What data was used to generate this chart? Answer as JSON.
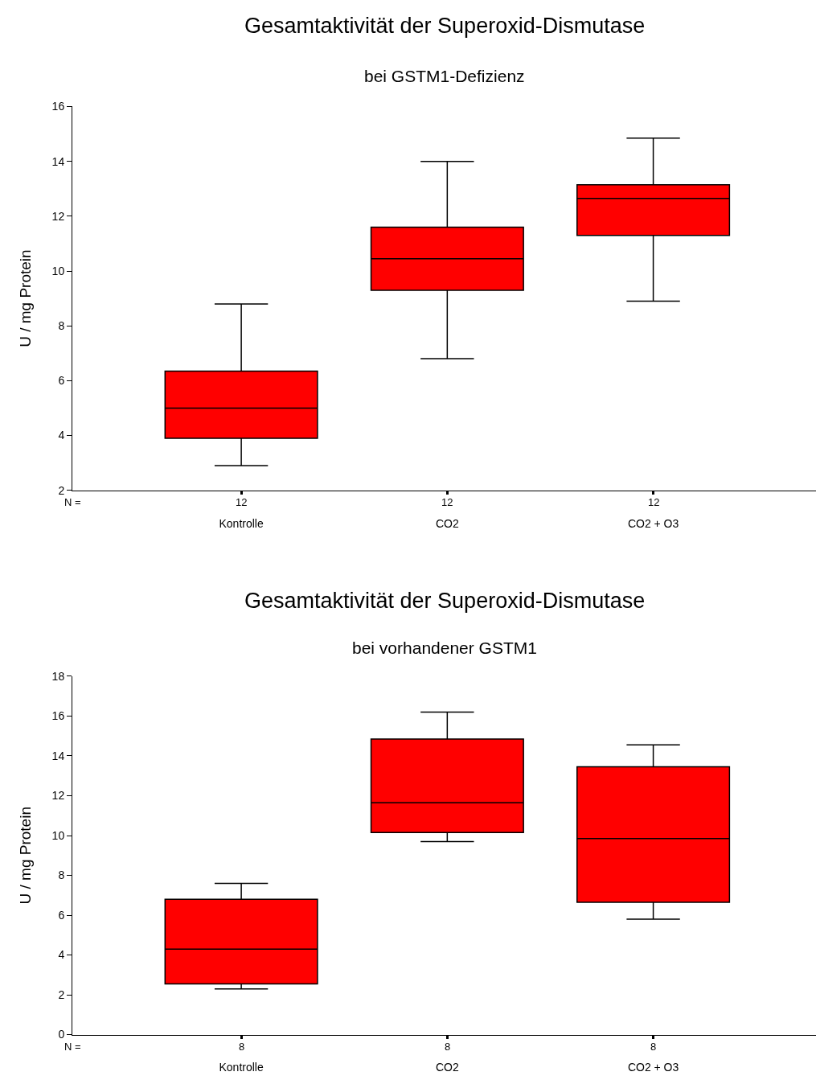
{
  "chart_data": [
    {
      "type": "box",
      "title": "Gesamtaktivität der Superoxid-Dismutase",
      "subtitle": "bei GSTM1-Defizienz",
      "ylabel": "U / mg Protein",
      "categories": [
        "Kontrolle",
        "CO2",
        "CO2 + O3"
      ],
      "ylim": [
        2,
        16
      ],
      "yticks": [
        2,
        4,
        6,
        8,
        10,
        12,
        14,
        16
      ],
      "series": [
        {
          "color": "#ff0000",
          "boxes": [
            {
              "low": 2.9,
              "q1": 3.9,
              "median": 5.0,
              "q3": 6.35,
              "high": 8.8
            },
            {
              "low": 6.8,
              "q1": 9.3,
              "median": 10.45,
              "q3": 11.6,
              "high": 14.0
            },
            {
              "low": 8.9,
              "q1": 11.3,
              "median": 12.65,
              "q3": 13.15,
              "high": 14.85
            }
          ]
        }
      ],
      "annotations": [
        "N =",
        "12",
        "12",
        "12"
      ]
    },
    {
      "type": "box",
      "title": "Gesamtaktivität der Superoxid-Dismutase",
      "subtitle": "bei vorhandener GSTM1",
      "ylabel": "U / mg Protein",
      "categories": [
        "Kontrolle",
        "CO2",
        "CO2 + O3"
      ],
      "ylim": [
        0,
        18
      ],
      "yticks": [
        0,
        2,
        4,
        6,
        8,
        10,
        12,
        14,
        16,
        18
      ],
      "series": [
        {
          "color": "#ff0000",
          "boxes": [
            {
              "low": 2.3,
              "q1": 2.55,
              "median": 4.3,
              "q3": 6.8,
              "high": 7.6
            },
            {
              "low": 9.7,
              "q1": 10.15,
              "median": 11.65,
              "q3": 14.85,
              "high": 16.2
            },
            {
              "low": 5.8,
              "q1": 6.65,
              "median": 9.85,
              "q3": 13.45,
              "high": 14.55
            }
          ]
        }
      ],
      "annotations": [
        "N =",
        "8",
        "8",
        "8"
      ]
    }
  ]
}
